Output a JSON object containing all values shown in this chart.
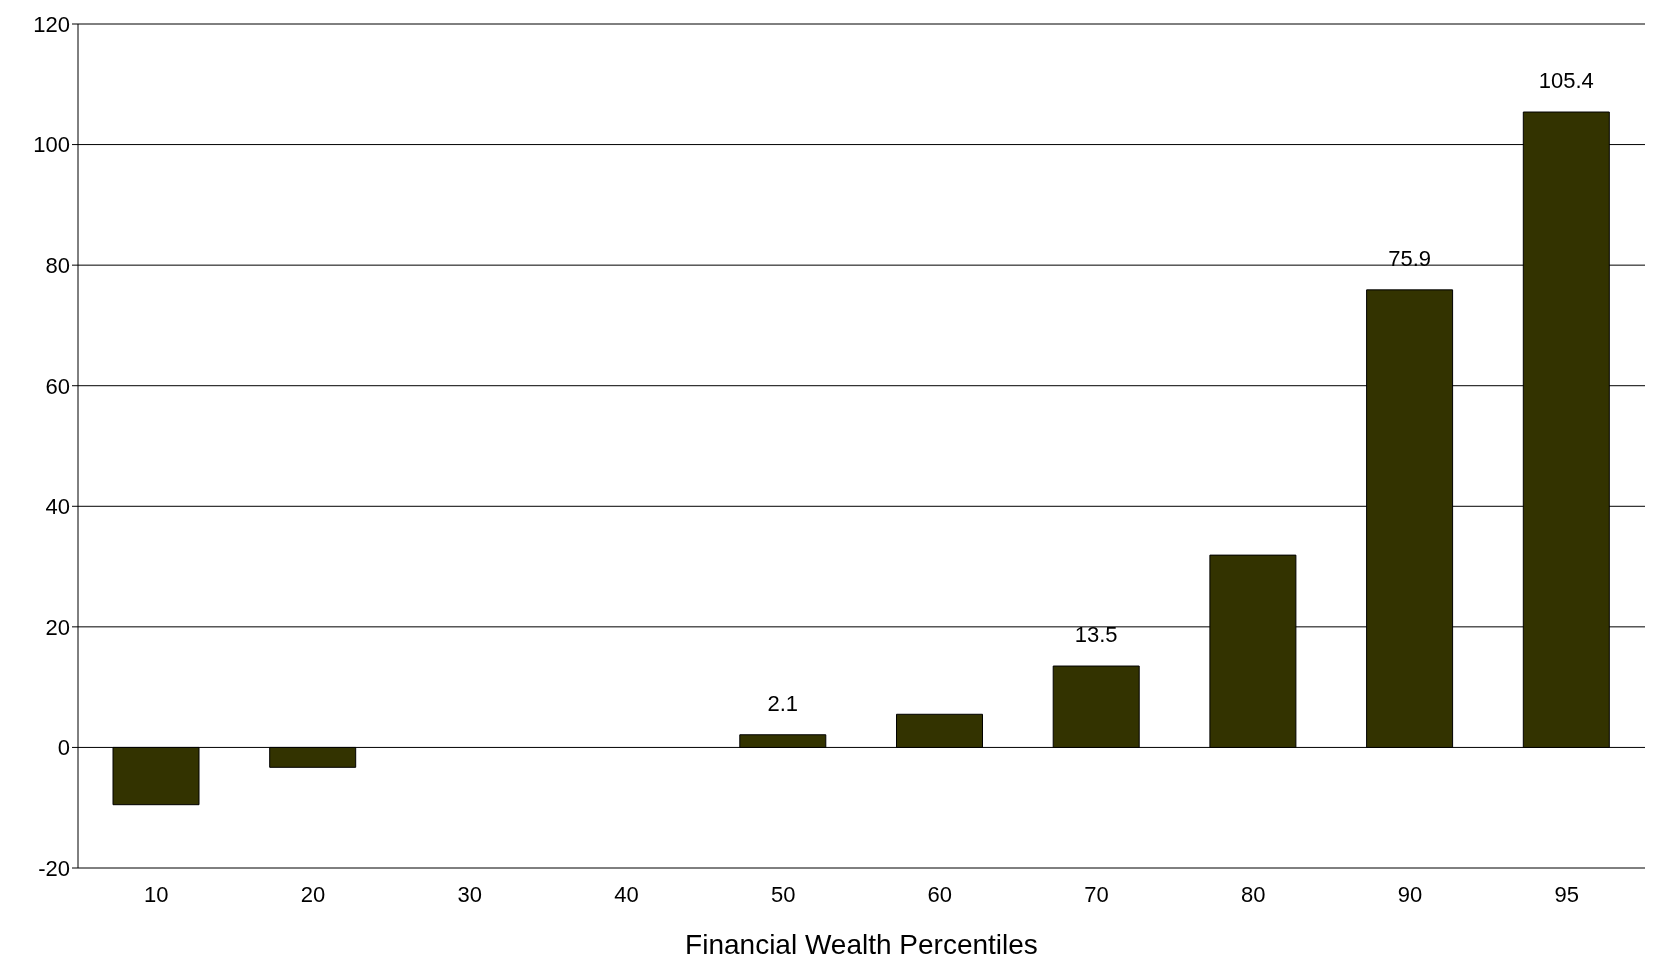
{
  "chart_data": {
    "type": "bar",
    "xlabel": "Financial Wealth Percentiles",
    "categories": [
      "10",
      "20",
      "30",
      "40",
      "50",
      "60",
      "70",
      "80",
      "90",
      "95"
    ],
    "values": [
      -9.5,
      -3.3,
      0,
      0,
      2.1,
      5.5,
      13.5,
      31.9,
      75.9,
      105.4
    ],
    "value_labels": [
      null,
      null,
      null,
      null,
      "2.1",
      null,
      "13.5",
      null,
      "75.9",
      "105.4"
    ],
    "color": "#333300",
    "ylim": [
      -20,
      120
    ],
    "yticks": [
      -20,
      0,
      20,
      40,
      60,
      80,
      100,
      120
    ],
    "grid": "y",
    "legend": false
  }
}
